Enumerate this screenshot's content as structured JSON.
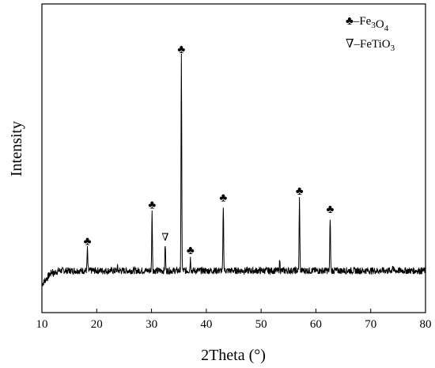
{
  "chart_data": {
    "type": "line",
    "title": "",
    "xlabel": "2Theta (°)",
    "ylabel": "Intensity",
    "xlim": [
      10,
      80
    ],
    "ylim": [
      0,
      1
    ],
    "x_ticks": [
      10,
      20,
      30,
      40,
      50,
      60,
      70,
      80
    ],
    "y_ticks_shown": false,
    "grid": false,
    "legend_position": "top-right",
    "legend": [
      {
        "symbol": "♣",
        "label_prefix": "–Fe",
        "sub1": "3",
        "mid": "O",
        "sub2": "4",
        "tail": ""
      },
      {
        "symbol": "∇",
        "label_prefix": "–FeTi",
        "sub1": "",
        "mid": "O",
        "sub2": "3",
        "tail": ""
      }
    ],
    "series": [
      {
        "name": "",
        "baseline": 0.045,
        "peaks": [
          {
            "x": 18.3,
            "y": 0.14
          },
          {
            "x": 23.8,
            "y": 0.06
          },
          {
            "x": 30.1,
            "y": 0.3
          },
          {
            "x": 32.5,
            "y": 0.16
          },
          {
            "x": 35.45,
            "y": 0.98
          },
          {
            "x": 37.1,
            "y": 0.1
          },
          {
            "x": 43.1,
            "y": 0.33
          },
          {
            "x": 53.4,
            "y": 0.09
          },
          {
            "x": 57.0,
            "y": 0.36
          },
          {
            "x": 62.6,
            "y": 0.28
          },
          {
            "x": 74.0,
            "y": 0.07
          }
        ]
      }
    ],
    "annotations": [
      {
        "x": 18.3,
        "symbol": "♣",
        "kind": "Fe3O4"
      },
      {
        "x": 30.1,
        "symbol": "♣",
        "kind": "Fe3O4"
      },
      {
        "x": 32.5,
        "symbol": "∇",
        "kind": "FeTiO3"
      },
      {
        "x": 35.45,
        "symbol": "♣",
        "kind": "Fe3O4"
      },
      {
        "x": 37.1,
        "symbol": "♣",
        "kind": "Fe3O4"
      },
      {
        "x": 43.1,
        "symbol": "♣",
        "kind": "Fe3O4"
      },
      {
        "x": 57.0,
        "symbol": "♣",
        "kind": "Fe3O4"
      },
      {
        "x": 62.6,
        "symbol": "♣",
        "kind": "Fe3O4"
      }
    ]
  }
}
